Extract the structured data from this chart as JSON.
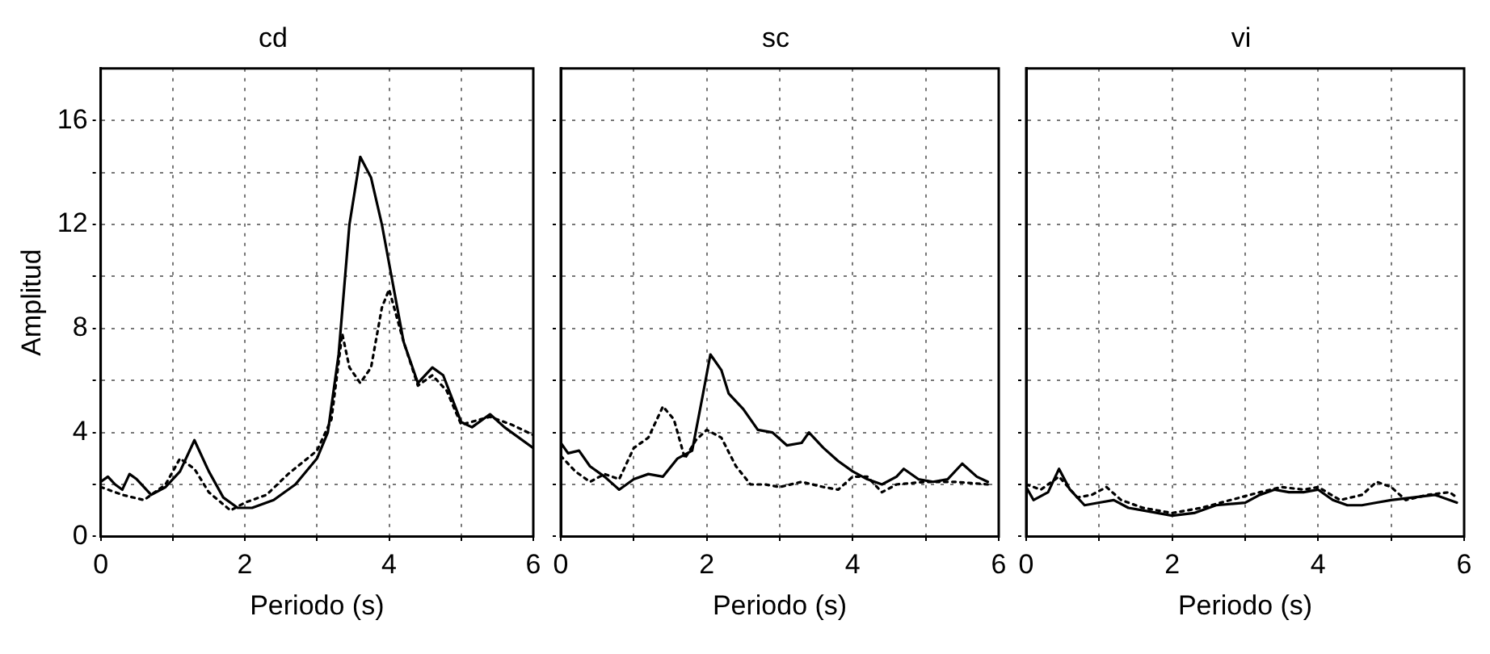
{
  "chart_data": [
    {
      "type": "line",
      "title": "cd",
      "xlabel": "Periodo (s)",
      "ylabel": "Amplitud",
      "xlim": [
        0,
        6
      ],
      "ylim": [
        0,
        18
      ],
      "xticks": [
        0,
        {
          "value": 1,
          "label": null
        },
        2,
        {
          "value": 3,
          "label": null
        },
        4,
        {
          "value": 5,
          "label": null
        },
        6
      ],
      "yticks": [
        0,
        {
          "value": 2,
          "label": null
        },
        4,
        {
          "value": 6,
          "label": null
        },
        8,
        {
          "value": 10,
          "label": null
        },
        12,
        {
          "value": 14,
          "label": null
        },
        16
      ],
      "grid": true,
      "marker": "none",
      "series": [
        {
          "color": "#000000",
          "line_style": "solid",
          "x": [
            0,
            0.1,
            0.2,
            0.3,
            0.4,
            0.5,
            0.7,
            0.9,
            1.1,
            1.3,
            1.5,
            1.7,
            1.9,
            2.1,
            2.4,
            2.7,
            3.0,
            3.15,
            3.3,
            3.45,
            3.6,
            3.75,
            3.9,
            4.0,
            4.2,
            4.4,
            4.6,
            4.75,
            5.0,
            5.15,
            5.4,
            5.6,
            6.0
          ],
          "values": [
            2.1,
            2.3,
            2.0,
            1.8,
            2.4,
            2.2,
            1.6,
            1.9,
            2.5,
            3.7,
            2.5,
            1.5,
            1.1,
            1.1,
            1.4,
            2.0,
            3.0,
            4.0,
            7.0,
            12.0,
            14.6,
            13.8,
            12.0,
            10.5,
            7.5,
            5.9,
            6.5,
            6.2,
            4.4,
            4.2,
            4.7,
            4.2,
            3.4
          ]
        },
        {
          "color": "#000000",
          "line_style": "dotted",
          "x": [
            0,
            0.3,
            0.6,
            0.9,
            1.1,
            1.3,
            1.5,
            1.8,
            2.0,
            2.3,
            2.6,
            3.0,
            3.2,
            3.35,
            3.45,
            3.6,
            3.75,
            3.9,
            4.0,
            4.2,
            4.4,
            4.6,
            4.8,
            5.0,
            5.4,
            5.7,
            6.0
          ],
          "values": [
            1.9,
            1.6,
            1.4,
            2.0,
            3.0,
            2.6,
            1.7,
            1.0,
            1.3,
            1.6,
            2.4,
            3.3,
            4.5,
            7.8,
            6.5,
            5.9,
            6.5,
            8.8,
            9.5,
            7.5,
            5.8,
            6.2,
            5.6,
            4.3,
            4.6,
            4.3,
            3.9
          ]
        }
      ]
    },
    {
      "type": "line",
      "title": "sc",
      "xlabel": "Periodo (s)",
      "tick_labels": "x",
      "xlim": [
        0,
        6
      ],
      "ylim": [
        0,
        18
      ],
      "xticks": [
        0,
        {
          "value": 1,
          "label": null
        },
        2,
        {
          "value": 3,
          "label": null
        },
        4,
        {
          "value": 5,
          "label": null
        },
        6
      ],
      "yticks": [
        0,
        {
          "value": 2,
          "label": null
        },
        4,
        {
          "value": 6,
          "label": null
        },
        8,
        {
          "value": 10,
          "label": null
        },
        12,
        {
          "value": 14,
          "label": null
        },
        16
      ],
      "grid": true,
      "marker": "none",
      "series": [
        {
          "color": "#000000",
          "line_style": "solid",
          "x": [
            0,
            0.1,
            0.25,
            0.4,
            0.6,
            0.8,
            1.0,
            1.2,
            1.4,
            1.6,
            1.8,
            1.95,
            2.05,
            2.2,
            2.3,
            2.5,
            2.7,
            2.9,
            3.1,
            3.3,
            3.4,
            3.6,
            3.8,
            4.0,
            4.2,
            4.4,
            4.6,
            4.7,
            4.9,
            5.1,
            5.3,
            5.5,
            5.7,
            5.85
          ],
          "values": [
            3.6,
            3.2,
            3.3,
            2.7,
            2.3,
            1.8,
            2.2,
            2.4,
            2.3,
            3.0,
            3.3,
            5.5,
            7.0,
            6.4,
            5.5,
            4.9,
            4.1,
            4.0,
            3.5,
            3.6,
            4.0,
            3.4,
            2.9,
            2.5,
            2.2,
            2.0,
            2.3,
            2.6,
            2.2,
            2.1,
            2.2,
            2.8,
            2.3,
            2.1
          ]
        },
        {
          "color": "#000000",
          "line_style": "dotted",
          "x": [
            0,
            0.2,
            0.4,
            0.6,
            0.8,
            1.0,
            1.2,
            1.4,
            1.55,
            1.7,
            1.85,
            2.0,
            2.2,
            2.4,
            2.6,
            2.8,
            3.0,
            3.3,
            3.6,
            3.8,
            4.0,
            4.2,
            4.4,
            4.6,
            5.0,
            5.4,
            5.85
          ],
          "values": [
            3.1,
            2.5,
            2.1,
            2.4,
            2.2,
            3.4,
            3.8,
            5.0,
            4.5,
            3.0,
            3.7,
            4.1,
            3.8,
            2.7,
            2.0,
            2.0,
            1.9,
            2.1,
            1.9,
            1.8,
            2.3,
            2.3,
            1.7,
            2.0,
            2.1,
            2.1,
            2.0
          ]
        }
      ]
    },
    {
      "type": "line",
      "title": "vi",
      "xlabel": "Periodo (s)",
      "tick_labels": "x",
      "xlim": [
        0,
        6
      ],
      "ylim": [
        0,
        18
      ],
      "xticks": [
        0,
        {
          "value": 1,
          "label": null
        },
        2,
        {
          "value": 3,
          "label": null
        },
        4,
        {
          "value": 5,
          "label": null
        },
        6
      ],
      "yticks": [
        0,
        {
          "value": 2,
          "label": null
        },
        4,
        {
          "value": 6,
          "label": null
        },
        8,
        {
          "value": 10,
          "label": null
        },
        12,
        {
          "value": 14,
          "label": null
        },
        16
      ],
      "grid": true,
      "marker": "none",
      "series": [
        {
          "color": "#000000",
          "line_style": "solid",
          "x": [
            0,
            0.1,
            0.3,
            0.45,
            0.6,
            0.8,
            1.0,
            1.2,
            1.4,
            1.6,
            2.0,
            2.3,
            2.6,
            3.0,
            3.2,
            3.4,
            3.6,
            3.8,
            4.0,
            4.2,
            4.4,
            4.6,
            4.8,
            5.0,
            5.3,
            5.6,
            5.9
          ],
          "values": [
            1.9,
            1.4,
            1.7,
            2.6,
            1.8,
            1.2,
            1.3,
            1.4,
            1.1,
            1.0,
            0.8,
            0.9,
            1.2,
            1.3,
            1.6,
            1.8,
            1.7,
            1.7,
            1.8,
            1.4,
            1.2,
            1.2,
            1.3,
            1.4,
            1.5,
            1.6,
            1.3
          ]
        },
        {
          "color": "#000000",
          "line_style": "dotted",
          "x": [
            0,
            0.2,
            0.45,
            0.7,
            0.9,
            1.1,
            1.3,
            1.6,
            2.0,
            2.4,
            2.8,
            3.2,
            3.5,
            3.8,
            4.0,
            4.3,
            4.6,
            4.8,
            5.0,
            5.2,
            5.5,
            5.8,
            5.9
          ],
          "values": [
            2.0,
            1.8,
            2.3,
            1.5,
            1.6,
            1.9,
            1.4,
            1.1,
            0.9,
            1.1,
            1.4,
            1.7,
            1.9,
            1.8,
            1.9,
            1.4,
            1.6,
            2.1,
            1.9,
            1.4,
            1.6,
            1.7,
            1.5
          ]
        }
      ]
    }
  ]
}
